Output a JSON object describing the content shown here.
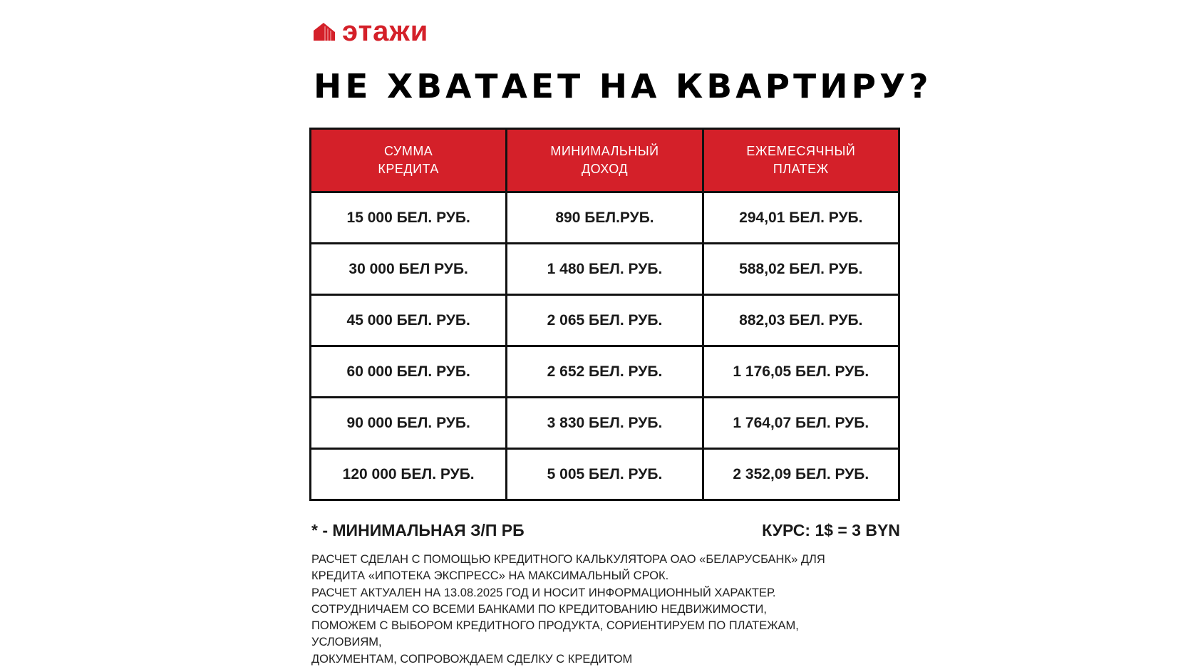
{
  "brand": {
    "name": "этажи",
    "color": "#d42029"
  },
  "title": "НЕ ХВАТАЕТ НА КВАРТИРУ?",
  "table": {
    "headers": [
      "СУММА\nКРЕДИТА",
      "МИНИМАЛЬНЫЙ\nДОХОД",
      "ЕЖЕМЕСЯЧНЫЙ\nПЛАТЕЖ"
    ],
    "header_color": "#d42029",
    "rows": [
      [
        "15 000 БЕЛ. РУБ.",
        "890 БЕЛ.РУБ.",
        "294,01 БЕЛ. РУБ."
      ],
      [
        "30 000 БЕЛ РУБ.",
        "1 480 БЕЛ. РУБ.",
        "588,02 БЕЛ. РУБ."
      ],
      [
        "45 000 БЕЛ. РУБ.",
        "2 065 БЕЛ. РУБ.",
        "882,03 БЕЛ. РУБ."
      ],
      [
        "60 000 БЕЛ. РУБ.",
        "2 652 БЕЛ. РУБ.",
        "1 176,05 БЕЛ. РУБ."
      ],
      [
        "90 000 БЕЛ. РУБ.",
        "3 830 БЕЛ. РУБ.",
        "1 764,07 БЕЛ. РУБ."
      ],
      [
        "120 000 БЕЛ. РУБ.",
        "5 005 БЕЛ. РУБ.",
        "2 352,09 БЕЛ. РУБ."
      ]
    ]
  },
  "footnote": "* - МИНИМАЛЬНАЯ З/П РБ",
  "exchange_rate": "КУРС: 1$ = 3 BYN",
  "disclaimer": [
    "РАСЧЕТ СДЕЛАН С ПОМОЩЬЮ КРЕДИТНОГО КАЛЬКУЛЯТОРА ОАО «БЕЛАРУСБАНК» ДЛЯ",
    "КРЕДИТА «ИПОТЕКА ЭКСПРЕСС» НА МАКСИМАЛЬНЫЙ СРОК.",
    "РАСЧЕТ АКТУАЛЕН НА 13.08.2025 ГОД И НОСИТ ИНФОРМАЦИОННЫЙ ХАРАКТЕР.",
    "СОТРУДНИЧАЕМ СО ВСЕМИ БАНКАМИ ПО КРЕДИТОВАНИЮ НЕДВИЖИМОСТИ,",
    "ПОМОЖЕМ С ВЫБОРОМ КРЕДИТНОГО ПРОДУКТА, СОРИЕНТИРУЕМ ПО ПЛАТЕЖАМ,",
    "УСЛОВИЯМ,",
    "ДОКУМЕНТАМ, СОПРОВОЖДАЕМ СДЕЛКУ С КРЕДИТОМ"
  ]
}
